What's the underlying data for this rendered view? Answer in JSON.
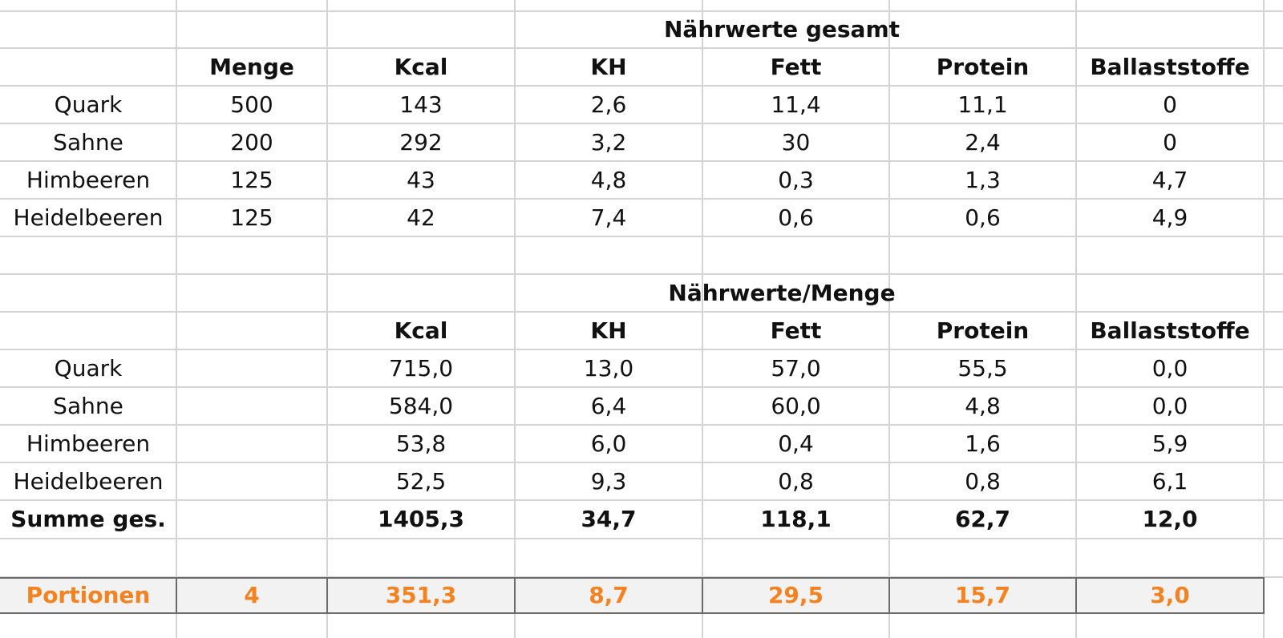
{
  "section1": {
    "title": "Nährwerte gesamt",
    "headers": [
      "Menge",
      "Kcal",
      "KH",
      "Fett",
      "Protein",
      "Ballaststoffe"
    ],
    "rows": [
      {
        "name": "Quark",
        "values": [
          "500",
          "143",
          "2,6",
          "11,4",
          "11,1",
          "0"
        ]
      },
      {
        "name": "Sahne",
        "values": [
          "200",
          "292",
          "3,2",
          "30",
          "2,4",
          "0"
        ]
      },
      {
        "name": "Himbeeren",
        "values": [
          "125",
          "43",
          "4,8",
          "0,3",
          "1,3",
          "4,7"
        ]
      },
      {
        "name": "Heidelbeeren",
        "values": [
          "125",
          "42",
          "7,4",
          "0,6",
          "0,6",
          "4,9"
        ]
      }
    ]
  },
  "section2": {
    "title": "Nährwerte/Menge",
    "headers": [
      "Kcal",
      "KH",
      "Fett",
      "Protein",
      "Ballaststoffe"
    ],
    "rows": [
      {
        "name": "Quark",
        "values": [
          "715,0",
          "13,0",
          "57,0",
          "55,5",
          "0,0"
        ]
      },
      {
        "name": "Sahne",
        "values": [
          "584,0",
          "6,4",
          "60,0",
          "4,8",
          "0,0"
        ]
      },
      {
        "name": "Himbeeren",
        "values": [
          "53,8",
          "6,0",
          "0,4",
          "1,6",
          "5,9"
        ]
      },
      {
        "name": "Heidelbeeren",
        "values": [
          "52,5",
          "9,3",
          "0,8",
          "0,8",
          "6,1"
        ]
      }
    ],
    "total": {
      "name": "Summe ges.",
      "values": [
        "1405,3",
        "34,7",
        "118,1",
        "62,7",
        "12,0"
      ]
    }
  },
  "portions": {
    "name": "Portionen",
    "count": "4",
    "values": [
      "351,3",
      "8,7",
      "29,5",
      "15,7",
      "3,0"
    ]
  },
  "colors": {
    "accent": "#f58220",
    "grid": "#d4d4d4",
    "band": "#f2f2f2"
  }
}
